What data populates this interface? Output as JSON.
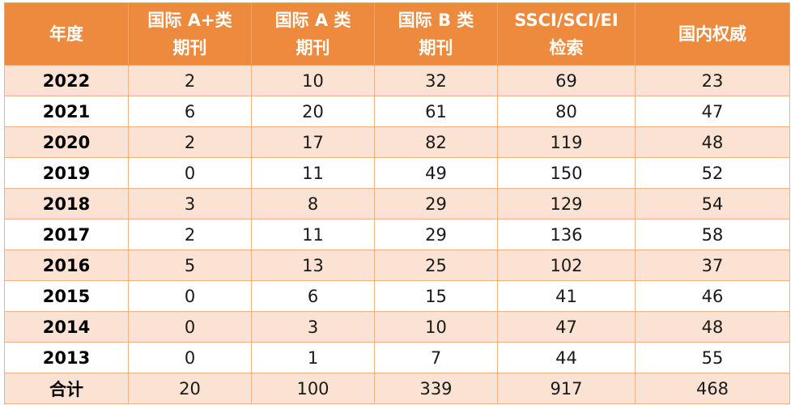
{
  "table": {
    "headers": [
      [
        "年度"
      ],
      [
        "国际 A+类",
        "期刊"
      ],
      [
        "国际 A 类",
        "期刊"
      ],
      [
        "国际 B 类",
        "期刊"
      ],
      [
        "SSCI/SCI/EI",
        "检索"
      ],
      [
        "国内权威"
      ]
    ],
    "rows": [
      [
        "2022",
        "2",
        "10",
        "32",
        "69",
        "23"
      ],
      [
        "2021",
        "6",
        "20",
        "61",
        "80",
        "47"
      ],
      [
        "2020",
        "2",
        "17",
        "82",
        "119",
        "48"
      ],
      [
        "2019",
        "0",
        "11",
        "49",
        "150",
        "52"
      ],
      [
        "2018",
        "3",
        "8",
        "29",
        "129",
        "54"
      ],
      [
        "2017",
        "2",
        "11",
        "29",
        "136",
        "58"
      ],
      [
        "2016",
        "5",
        "13",
        "25",
        "102",
        "37"
      ],
      [
        "2015",
        "0",
        "6",
        "15",
        "41",
        "46"
      ],
      [
        "2014",
        "0",
        "3",
        "10",
        "47",
        "48"
      ],
      [
        "2013",
        "0",
        "1",
        "7",
        "44",
        "55"
      ],
      [
        "合计",
        "20",
        "100",
        "339",
        "917",
        "468"
      ]
    ],
    "colors": {
      "header_bg": "#ee8a3e",
      "band_bg": "#fbe2d3",
      "plain_bg": "#ffffff",
      "border": "#f3b283"
    }
  }
}
